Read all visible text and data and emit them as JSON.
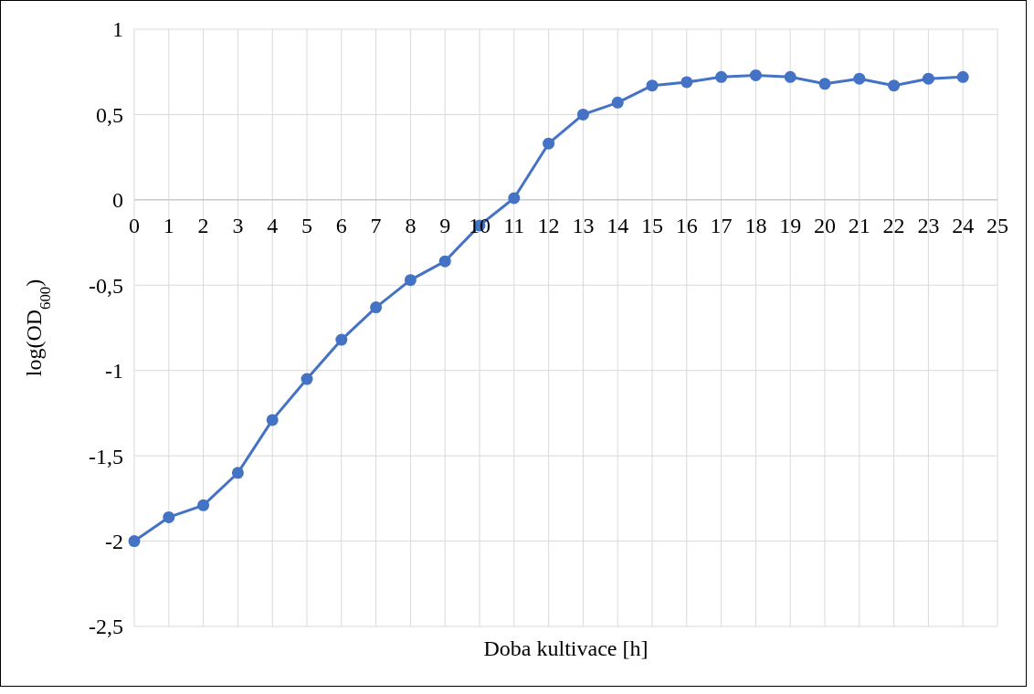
{
  "chart_data": {
    "type": "line",
    "xlabel": "Doba kultivace [h]",
    "ylabel": "log(OD$_{600}$)",
    "x": [
      0,
      1,
      2,
      3,
      4,
      5,
      6,
      7,
      8,
      9,
      10,
      11,
      12,
      13,
      14,
      15,
      16,
      17,
      18,
      19,
      20,
      21,
      22,
      23,
      24
    ],
    "series": [
      {
        "color": "#4472c4",
        "values": [
          -2.0,
          -1.86,
          -1.79,
          -1.6,
          -1.29,
          -1.05,
          -0.82,
          -0.63,
          -0.47,
          -0.36,
          -0.15,
          0.01,
          0.33,
          0.5,
          0.57,
          0.67,
          0.69,
          0.72,
          0.73,
          0.72,
          0.68,
          0.71,
          0.67,
          0.71,
          0.72
        ]
      }
    ],
    "xlim": [
      0,
      25
    ],
    "xticks": [
      0,
      1,
      2,
      3,
      4,
      5,
      6,
      7,
      8,
      9,
      10,
      11,
      12,
      13,
      14,
      15,
      16,
      17,
      18,
      19,
      20,
      21,
      22,
      23,
      24,
      25
    ],
    "ylim": [
      -2.5,
      1
    ],
    "yticks": [
      {
        "value": -2.5,
        "label": "-2,5"
      },
      -2,
      {
        "value": -1.5,
        "label": "-1,5"
      },
      -1,
      {
        "value": -0.5,
        "label": "-0,5"
      },
      0,
      {
        "value": 0.5,
        "label": "0,5"
      },
      1
    ],
    "grid": true,
    "marker": "circle",
    "line_style": "solid"
  }
}
